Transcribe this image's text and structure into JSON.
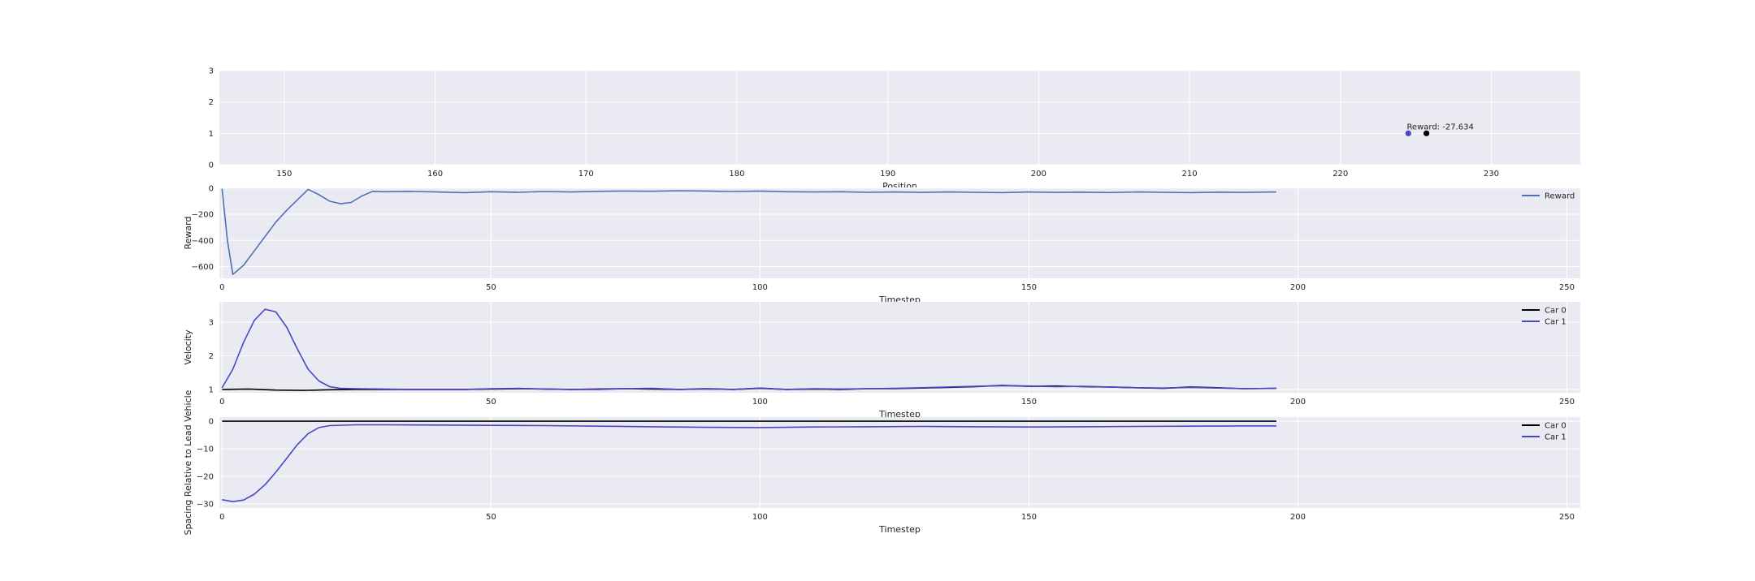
{
  "figure": {
    "background": "#ffffff",
    "axes_face": "#eaeaf2",
    "grid_color": "#ffffff"
  },
  "chart_data": [
    {
      "type": "scatter",
      "title": "",
      "xlabel": "Position",
      "ylabel": "",
      "xlim": [
        145.7,
        235.9
      ],
      "ylim": [
        0,
        3
      ],
      "xticks": [
        150,
        160,
        170,
        180,
        190,
        200,
        210,
        220,
        230
      ],
      "yticks": [
        0,
        1,
        2,
        3
      ],
      "grid": true,
      "points": [
        {
          "x": 224.5,
          "y": 1,
          "color": "#4c44c8"
        },
        {
          "x": 225.7,
          "y": 1,
          "color": "#000000"
        }
      ],
      "annotation": {
        "text": "Reward: -27.634",
        "x": 224.4,
        "y": 1.0
      }
    },
    {
      "type": "line",
      "xlabel": "Timestep",
      "ylabel": "Reward",
      "xlim": [
        -0.5,
        252.5
      ],
      "ylim": [
        -690,
        5
      ],
      "xticks": [
        0,
        50,
        100,
        150,
        200,
        250
      ],
      "yticks": [
        0,
        -200,
        -400,
        -600
      ],
      "grid": true,
      "legend": "top-right",
      "series": [
        {
          "name": "Reward",
          "color": "#4c72b0",
          "x": [
            0,
            1,
            2,
            4,
            6,
            8,
            10,
            12,
            14,
            16,
            18,
            20,
            22,
            24,
            26,
            28,
            30,
            35,
            40,
            45,
            50,
            55,
            60,
            65,
            70,
            75,
            80,
            85,
            90,
            95,
            100,
            105,
            110,
            115,
            120,
            125,
            130,
            135,
            140,
            145,
            150,
            155,
            160,
            165,
            170,
            175,
            180,
            185,
            190,
            196
          ],
          "values": [
            -5,
            -400,
            -660,
            -590,
            -480,
            -370,
            -260,
            -170,
            -90,
            -10,
            -50,
            -100,
            -120,
            -110,
            -60,
            -25,
            -28,
            -25,
            -30,
            -35,
            -28,
            -32,
            -26,
            -30,
            -25,
            -22,
            -24,
            -20,
            -22,
            -26,
            -22,
            -28,
            -30,
            -28,
            -32,
            -30,
            -33,
            -30,
            -32,
            -35,
            -30,
            -33,
            -31,
            -34,
            -30,
            -32,
            -35,
            -31,
            -33,
            -30
          ]
        }
      ]
    },
    {
      "type": "line",
      "xlabel": "Timestep",
      "ylabel": "Velocity",
      "xlim": [
        -0.5,
        252.5
      ],
      "ylim": [
        0.9,
        3.6
      ],
      "xticks": [
        0,
        50,
        100,
        150,
        200,
        250
      ],
      "yticks": [
        1,
        2,
        3
      ],
      "grid": true,
      "legend": "top-right",
      "series": [
        {
          "name": "Car 0",
          "color": "#000000",
          "x": [
            0,
            5,
            10,
            15,
            20,
            25,
            30,
            35,
            40,
            45,
            50,
            55,
            60,
            65,
            70,
            75,
            80,
            85,
            90,
            95,
            100,
            105,
            110,
            115,
            120,
            125,
            130,
            135,
            140,
            145,
            150,
            155,
            160,
            165,
            170,
            175,
            180,
            185,
            190,
            196
          ],
          "values": [
            1.0,
            1.01,
            0.98,
            0.97,
            0.99,
            1.0,
            1.0,
            1.0,
            1.0,
            1.0,
            1.01,
            1.02,
            1.01,
            1.0,
            1.01,
            1.02,
            1.01,
            1.0,
            1.02,
            1.0,
            1.03,
            1.0,
            1.01,
            1.0,
            1.02,
            1.02,
            1.04,
            1.06,
            1.08,
            1.12,
            1.09,
            1.1,
            1.08,
            1.07,
            1.05,
            1.03,
            1.07,
            1.05,
            1.02,
            1.03
          ]
        },
        {
          "name": "Car 1",
          "color": "#4c44c8",
          "x": [
            0,
            2,
            4,
            6,
            8,
            10,
            12,
            14,
            16,
            18,
            20,
            22,
            25,
            30,
            35,
            40,
            45,
            50,
            55,
            60,
            65,
            70,
            75,
            80,
            85,
            90,
            95,
            100,
            105,
            110,
            115,
            120,
            125,
            130,
            135,
            140,
            145,
            150,
            155,
            160,
            165,
            170,
            175,
            180,
            185,
            190,
            196
          ],
          "values": [
            1.05,
            1.6,
            2.4,
            3.05,
            3.38,
            3.3,
            2.85,
            2.2,
            1.6,
            1.25,
            1.08,
            1.03,
            1.02,
            1.01,
            1.0,
            1.0,
            1.0,
            1.02,
            1.03,
            1.01,
            1.0,
            1.0,
            1.02,
            1.03,
            1.0,
            1.01,
            1.0,
            1.04,
            1.0,
            1.02,
            1.01,
            1.02,
            1.03,
            1.05,
            1.07,
            1.09,
            1.11,
            1.1,
            1.08,
            1.09,
            1.07,
            1.05,
            1.04,
            1.06,
            1.04,
            1.02,
            1.03
          ]
        }
      ]
    },
    {
      "type": "line",
      "xlabel": "Timestep",
      "ylabel": "Spacing Relative to Lead Vehicle",
      "xlim": [
        -0.5,
        252.5
      ],
      "ylim": [
        -31.5,
        1.5
      ],
      "xticks": [
        0,
        50,
        100,
        150,
        200,
        250
      ],
      "yticks": [
        0,
        -10,
        -20,
        -30
      ],
      "grid": true,
      "legend": "top-right",
      "series": [
        {
          "name": "Car 0",
          "color": "#000000",
          "x": [
            0,
            196
          ],
          "values": [
            0,
            0
          ]
        },
        {
          "name": "Car 1",
          "color": "#4c44c8",
          "x": [
            0,
            2,
            4,
            6,
            8,
            10,
            12,
            14,
            16,
            18,
            20,
            25,
            30,
            40,
            50,
            60,
            70,
            80,
            90,
            100,
            110,
            120,
            130,
            140,
            150,
            160,
            170,
            180,
            190,
            196
          ],
          "values": [
            -28.5,
            -29.2,
            -28.6,
            -26.5,
            -23.0,
            -18.5,
            -13.5,
            -8.5,
            -4.5,
            -2.3,
            -1.6,
            -1.3,
            -1.3,
            -1.4,
            -1.5,
            -1.6,
            -1.8,
            -2.0,
            -2.2,
            -2.3,
            -2.1,
            -2.0,
            -1.9,
            -2.0,
            -2.1,
            -2.0,
            -1.9,
            -1.8,
            -1.7,
            -1.7
          ]
        }
      ]
    }
  ]
}
